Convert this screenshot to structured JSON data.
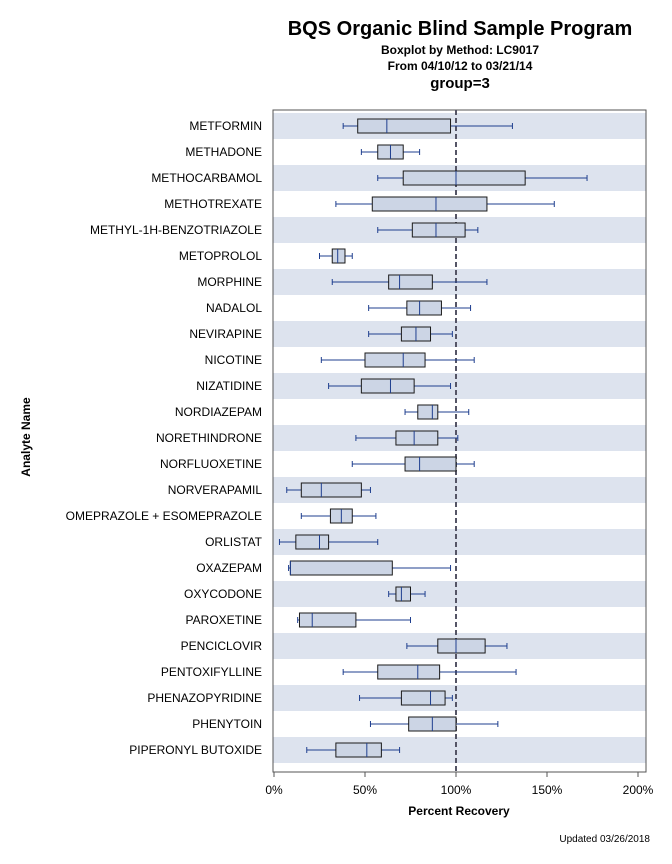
{
  "chart_data": {
    "type": "boxplot",
    "title": "BQS Organic Blind Sample Program",
    "subtitle": "Boxplot by Method: LC9017",
    "date_range": "From 04/10/12 to 03/21/14",
    "group_label": "group=3",
    "xlabel": "Percent Recovery",
    "ylabel": "Analyte Name",
    "xlim": [
      0,
      200
    ],
    "xticks": [
      0,
      50,
      100,
      150,
      200
    ],
    "xtick_labels": [
      "0%",
      "50%",
      "100%",
      "150%",
      "200%"
    ],
    "reference_line": 100,
    "footer": "Updated 03/26/2018",
    "colors": {
      "band": "#dde3ee",
      "box_fill": "#ccd5e5",
      "box_stroke": "#1a1a1a",
      "whisker": "#1f3f8f",
      "reference": "#555566",
      "axis": "#555555"
    },
    "analytes": [
      {
        "name": "METFORMIN",
        "min": 38,
        "q1": 46,
        "median": 62,
        "q3": 97,
        "max": 131
      },
      {
        "name": "METHADONE",
        "min": 48,
        "q1": 57,
        "median": 64,
        "q3": 71,
        "max": 80
      },
      {
        "name": "METHOCARBAMOL",
        "min": 57,
        "q1": 71,
        "median": 100,
        "q3": 138,
        "max": 172
      },
      {
        "name": "METHOTREXATE",
        "min": 34,
        "q1": 54,
        "median": 89,
        "q3": 117,
        "max": 154
      },
      {
        "name": "METHYL-1H-BENZOTRIAZOLE",
        "min": 57,
        "q1": 76,
        "median": 89,
        "q3": 105,
        "max": 112
      },
      {
        "name": "METOPROLOL",
        "min": 25,
        "q1": 32,
        "median": 35,
        "q3": 39,
        "max": 43
      },
      {
        "name": "MORPHINE",
        "min": 32,
        "q1": 63,
        "median": 69,
        "q3": 87,
        "max": 117
      },
      {
        "name": "NADALOL",
        "min": 52,
        "q1": 73,
        "median": 80,
        "q3": 92,
        "max": 108
      },
      {
        "name": "NEVIRAPINE",
        "min": 52,
        "q1": 70,
        "median": 78,
        "q3": 86,
        "max": 98
      },
      {
        "name": "NICOTINE",
        "min": 26,
        "q1": 50,
        "median": 71,
        "q3": 83,
        "max": 110
      },
      {
        "name": "NIZATIDINE",
        "min": 30,
        "q1": 48,
        "median": 64,
        "q3": 77,
        "max": 97
      },
      {
        "name": "NORDIAZEPAM",
        "min": 72,
        "q1": 79,
        "median": 87,
        "q3": 90,
        "max": 107
      },
      {
        "name": "NORETHINDRONE",
        "min": 45,
        "q1": 67,
        "median": 77,
        "q3": 90,
        "max": 101
      },
      {
        "name": "NORFLUOXETINE",
        "min": 43,
        "q1": 72,
        "median": 80,
        "q3": 100,
        "max": 110
      },
      {
        "name": "NORVERAPAMIL",
        "min": 7,
        "q1": 15,
        "median": 26,
        "q3": 48,
        "max": 53
      },
      {
        "name": "OMEPRAZOLE + ESOMEPRAZOLE",
        "min": 15,
        "q1": 31,
        "median": 37,
        "q3": 43,
        "max": 56
      },
      {
        "name": "ORLISTAT",
        "min": 3,
        "q1": 12,
        "median": 25,
        "q3": 30,
        "max": 57
      },
      {
        "name": "OXAZEPAM",
        "min": 8,
        "q1": 9,
        "median": 9,
        "q3": 65,
        "max": 97
      },
      {
        "name": "OXYCODONE",
        "min": 63,
        "q1": 67,
        "median": 70,
        "q3": 75,
        "max": 83
      },
      {
        "name": "PAROXETINE",
        "min": 13,
        "q1": 14,
        "median": 21,
        "q3": 45,
        "max": 75
      },
      {
        "name": "PENCICLOVIR",
        "min": 73,
        "q1": 90,
        "median": 100,
        "q3": 116,
        "max": 128
      },
      {
        "name": "PENTOXIFYLLINE",
        "min": 38,
        "q1": 57,
        "median": 79,
        "q3": 91,
        "max": 133
      },
      {
        "name": "PHENAZOPYRIDINE",
        "min": 47,
        "q1": 70,
        "median": 86,
        "q3": 94,
        "max": 98
      },
      {
        "name": "PHENYTOIN",
        "min": 53,
        "q1": 74,
        "median": 87,
        "q3": 100,
        "max": 123
      },
      {
        "name": "PIPERONYL BUTOXIDE",
        "min": 18,
        "q1": 34,
        "median": 51,
        "q3": 59,
        "max": 69
      }
    ]
  }
}
